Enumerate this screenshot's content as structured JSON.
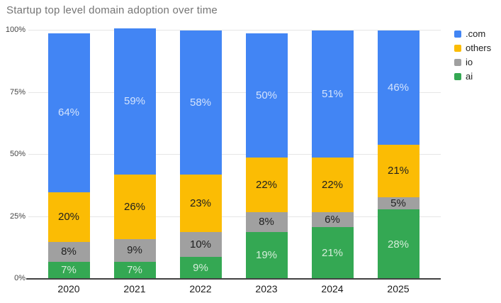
{
  "title": "Startup top level domain adoption over time",
  "chart_data": {
    "type": "bar",
    "stacked": true,
    "title": "Startup top level domain adoption over time",
    "categories": [
      "2020",
      "2021",
      "2022",
      "2023",
      "2024",
      "2025"
    ],
    "series": [
      {
        "name": ".com",
        "color": "#4285F4",
        "label_color": "#d3e3fd",
        "values": [
          64,
          59,
          58,
          50,
          51,
          46
        ]
      },
      {
        "name": "others",
        "color": "#FBBC04",
        "label_color": "#1f1f1f",
        "values": [
          20,
          26,
          23,
          22,
          22,
          21
        ]
      },
      {
        "name": "io",
        "color": "#A0A0A0",
        "label_color": "#1f1f1f",
        "values": [
          8,
          9,
          10,
          8,
          6,
          5
        ]
      },
      {
        "name": "ai",
        "color": "#34A853",
        "label_color": "#d4edd9",
        "values": [
          7,
          7,
          9,
          19,
          21,
          28
        ]
      }
    ],
    "stack_order_bottom_to_top": [
      "ai",
      "io",
      "others",
      ".com"
    ],
    "value_suffix": "%",
    "ylim": [
      0,
      100
    ],
    "y_ticks": [
      {
        "label": "0%",
        "value": 0
      },
      {
        "label": "25%",
        "value": 25
      },
      {
        "label": "50%",
        "value": 50
      },
      {
        "label": "75%",
        "value": 75
      },
      {
        "label": "100%",
        "value": 100
      }
    ],
    "grid": true,
    "legend_position": "top-right"
  },
  "legend": {
    "items": [
      {
        "label": ".com",
        "color": "#4285F4"
      },
      {
        "label": "others",
        "color": "#FBBC04"
      },
      {
        "label": "io",
        "color": "#A0A0A0"
      },
      {
        "label": "ai",
        "color": "#34A853"
      }
    ]
  },
  "colors": {
    "background": "#ffffff",
    "grid": "#e6e6e6",
    "axis": "#424242",
    "title_text": "#757575",
    "tick_text": "#444444",
    "category_text": "#1a1a1a"
  }
}
